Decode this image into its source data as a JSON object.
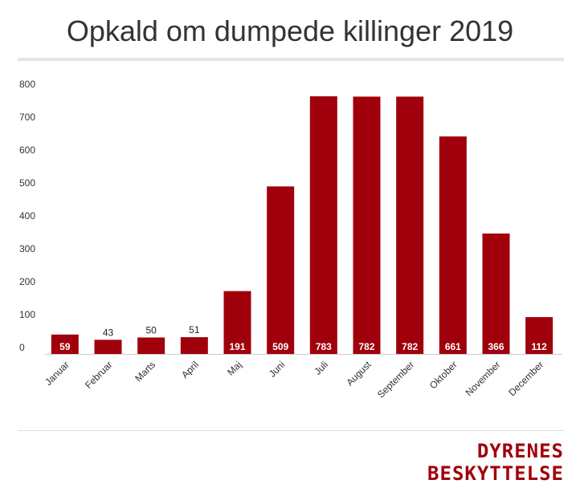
{
  "chart_data": {
    "type": "bar",
    "title": "Opkald om dumpede killinger 2019",
    "categories": [
      "Januar",
      "Februar",
      "Marts",
      "April",
      "Maj",
      "Juni",
      "Juli",
      "August",
      "September",
      "Oktober",
      "November",
      "December"
    ],
    "values": [
      59,
      43,
      50,
      51,
      191,
      509,
      783,
      782,
      782,
      661,
      366,
      112
    ],
    "xlabel": "",
    "ylabel": "",
    "ylim": [
      0,
      800
    ],
    "yticks": [
      0,
      100,
      200,
      300,
      400,
      500,
      600,
      700,
      800
    ],
    "grid": false,
    "bar_color": "#a0000b"
  },
  "brand": {
    "line1": "DYRENES",
    "line2": "BESKYTTELSE",
    "color": "#a0000b"
  }
}
